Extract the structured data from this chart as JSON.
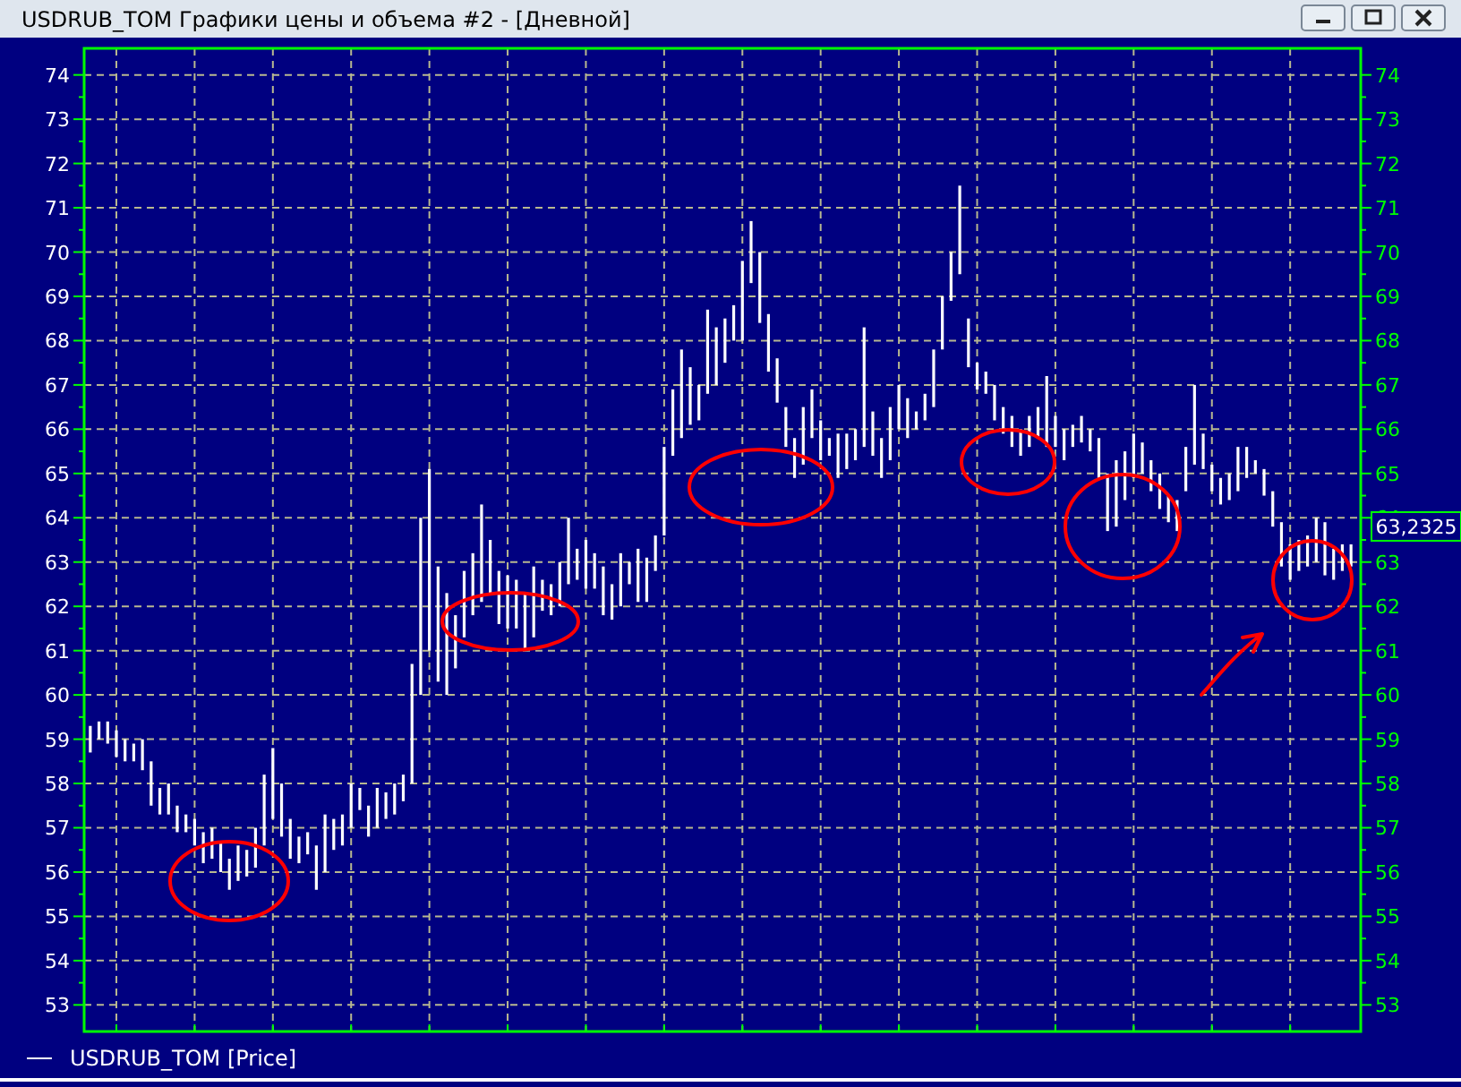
{
  "chart_data": {
    "type": "bar",
    "title": "USDRUB_TOM Графики цены и объема #2 - [Дневной]",
    "categories": [
      null,
      null,
      null,
      null,
      null,
      null,
      null,
      null,
      null,
      null,
      null,
      null,
      null,
      null,
      null,
      null,
      null,
      null,
      null,
      null,
      null,
      null,
      null,
      null,
      null,
      null,
      null,
      null,
      null,
      null,
      null,
      null,
      null,
      null,
      null,
      null,
      null,
      null,
      null,
      null,
      null,
      null,
      null,
      null,
      null,
      null,
      null,
      null,
      null,
      null,
      null,
      null,
      null,
      null,
      null,
      null,
      null,
      null,
      null,
      null,
      null,
      null,
      null,
      null,
      null,
      null,
      null,
      null,
      null,
      null,
      null,
      null,
      null,
      null,
      null,
      null,
      null,
      null,
      null,
      null,
      null,
      null,
      null,
      null,
      null,
      null,
      null,
      null,
      null,
      null,
      null,
      null,
      null,
      null,
      null,
      null,
      null,
      null,
      null,
      null,
      null,
      null,
      null,
      null,
      null,
      null,
      null,
      null,
      null,
      null,
      null,
      null,
      null,
      null,
      null,
      null,
      null,
      null,
      null,
      null,
      null,
      null,
      null,
      null,
      null,
      null,
      null,
      null,
      null,
      null,
      null,
      null,
      null,
      null,
      null,
      null,
      null,
      null,
      null,
      null,
      null,
      null,
      null,
      null,
      null,
      null
    ],
    "series": [
      {
        "name": "USDRUB_TOM [Price]",
        "color": "#ffffff",
        "base": [
          58.7,
          59.0,
          58.9,
          58.6,
          58.5,
          58.5,
          58.3,
          57.5,
          57.3,
          57.3,
          56.9,
          56.9,
          56.6,
          56.2,
          56.3,
          56.0,
          55.6,
          55.8,
          55.9,
          56.1,
          56.6,
          57.2,
          56.8,
          56.3,
          56.2,
          56.4,
          55.6,
          56.0,
          56.5,
          56.6,
          57.0,
          57.4,
          56.8,
          57.0,
          57.2,
          57.3,
          57.6,
          58.0,
          60.0,
          61.0,
          60.3,
          60.0,
          60.6,
          61.3,
          61.8,
          62.1,
          62.3,
          61.6,
          61.5,
          61.5,
          61.0,
          61.3,
          61.9,
          61.8,
          62.0,
          62.5,
          62.6,
          62.4,
          62.4,
          61.8,
          61.7,
          62.0,
          62.5,
          62.1,
          62.1,
          62.8,
          63.6,
          65.4,
          65.8,
          66.1,
          66.2,
          66.8,
          67.0,
          67.5,
          68.0,
          68.0,
          69.3,
          68.4,
          67.3,
          66.6,
          65.6,
          64.9,
          65.2,
          65.8,
          65.3,
          65.4,
          64.9,
          65.1,
          65.3,
          65.6,
          65.4,
          64.9,
          65.3,
          66.0,
          65.8,
          66.0,
          66.2,
          66.5,
          67.8,
          68.9,
          69.5,
          67.4,
          66.9,
          66.8,
          66.2,
          65.9,
          65.6,
          65.4,
          65.6,
          65.8,
          65.6,
          65.6,
          65.3,
          65.6,
          65.7,
          65.5,
          64.9,
          63.7,
          63.8,
          64.4,
          64.9,
          65.0,
          64.6,
          64.2,
          63.9,
          63.7,
          64.6,
          65.2,
          65.1,
          64.6,
          64.3,
          64.4,
          64.6,
          64.9,
          65.0,
          64.5,
          63.8,
          62.9,
          62.6,
          62.8,
          62.9,
          63.0,
          62.7,
          62.6,
          62.8,
          62.9
        ],
        "values": [
          0.6,
          0.4,
          0.5,
          0.6,
          0.5,
          0.4,
          0.7,
          1.0,
          0.6,
          0.7,
          0.6,
          0.4,
          0.6,
          0.7,
          0.7,
          0.7,
          0.7,
          0.8,
          0.6,
          0.9,
          1.6,
          1.6,
          1.2,
          0.9,
          0.6,
          0.5,
          1.0,
          1.3,
          0.7,
          0.7,
          1.0,
          0.5,
          0.7,
          0.9,
          0.6,
          0.7,
          0.6,
          2.7,
          4.0,
          4.1,
          2.6,
          2.3,
          1.2,
          1.5,
          1.4,
          2.2,
          1.2,
          1.2,
          1.2,
          1.1,
          1.3,
          1.6,
          0.7,
          0.7,
          1.0,
          1.5,
          0.7,
          1.1,
          0.8,
          1.1,
          0.8,
          1.2,
          0.5,
          1.2,
          1.0,
          0.8,
          2.0,
          1.5,
          2.0,
          1.3,
          0.8,
          1.9,
          1.3,
          1.0,
          0.8,
          1.8,
          1.4,
          1.6,
          1.3,
          1.0,
          0.9,
          0.9,
          1.3,
          1.1,
          0.9,
          0.4,
          1.0,
          0.8,
          0.7,
          2.7,
          1.0,
          0.9,
          1.2,
          1.0,
          0.9,
          0.4,
          0.6,
          1.3,
          1.2,
          1.1,
          2.0,
          1.1,
          0.6,
          0.5,
          0.8,
          0.6,
          0.7,
          0.6,
          0.7,
          0.7,
          1.6,
          0.7,
          0.7,
          0.5,
          0.6,
          0.5,
          0.9,
          1.3,
          1.5,
          1.1,
          1.0,
          0.7,
          0.7,
          0.8,
          0.6,
          0.7,
          1.0,
          1.8,
          0.8,
          0.6,
          0.6,
          0.6,
          1.0,
          0.7,
          0.3,
          0.6,
          0.8,
          1.0,
          0.8,
          0.7,
          0.7,
          1.0,
          1.2,
          0.7,
          0.6,
          0.5
        ]
      }
    ],
    "ylim": [
      52.4,
      74.6
    ],
    "yticks": [
      53,
      {
        "value": 53.5,
        "label": null
      },
      54,
      {
        "value": 54.5,
        "label": null
      },
      55,
      {
        "value": 55.5,
        "label": null
      },
      56,
      {
        "value": 56.5,
        "label": null
      },
      57,
      {
        "value": 57.5,
        "label": null
      },
      58,
      {
        "value": 58.5,
        "label": null
      },
      59,
      {
        "value": 59.5,
        "label": null
      },
      60,
      {
        "value": 60.5,
        "label": null
      },
      61,
      {
        "value": 61.5,
        "label": null
      },
      62,
      {
        "value": 62.5,
        "label": null
      },
      63,
      {
        "value": 63.5,
        "label": null
      },
      64,
      {
        "value": 64.5,
        "label": null
      },
      65,
      {
        "value": 65.5,
        "label": null
      },
      66,
      {
        "value": 66.5,
        "label": null
      },
      67,
      {
        "value": 67.5,
        "label": null
      },
      68,
      {
        "value": 68.5,
        "label": null
      },
      69,
      {
        "value": 69.5,
        "label": null
      },
      70,
      {
        "value": 70.5,
        "label": null
      },
      71,
      {
        "value": 71.5,
        "label": null
      },
      72,
      {
        "value": 72.5,
        "label": null
      },
      73,
      {
        "value": 73.5,
        "label": null
      },
      74
    ],
    "y2lim": [
      52.4,
      74.6
    ],
    "y2ticks": [
      53,
      {
        "value": 53.5,
        "label": null
      },
      54,
      {
        "value": 54.5,
        "label": null
      },
      55,
      {
        "value": 55.5,
        "label": null
      },
      56,
      {
        "value": 56.5,
        "label": null
      },
      57,
      {
        "value": 57.5,
        "label": null
      },
      58,
      {
        "value": 58.5,
        "label": null
      },
      59,
      {
        "value": 59.5,
        "label": null
      },
      60,
      {
        "value": 60.5,
        "label": null
      },
      61,
      {
        "value": 61.5,
        "label": null
      },
      62,
      {
        "value": 62.5,
        "label": null
      },
      63,
      {
        "value": 63.5,
        "label": null
      },
      64,
      {
        "value": 64.5,
        "label": null
      },
      65,
      {
        "value": 65.5,
        "label": null
      },
      66,
      {
        "value": 66.5,
        "label": null
      },
      67,
      {
        "value": 67.5,
        "label": null
      },
      68,
      {
        "value": 68.5,
        "label": null
      },
      69,
      {
        "value": 69.5,
        "label": null
      },
      70,
      {
        "value": 70.5,
        "label": null
      },
      71,
      {
        "value": 71.5,
        "label": null
      },
      72,
      {
        "value": 72.5,
        "label": null
      },
      73,
      {
        "value": 73.5,
        "label": null
      },
      74
    ],
    "annotations": [
      "63,2325"
    ],
    "grid": true,
    "legend": "bottom left"
  }
}
